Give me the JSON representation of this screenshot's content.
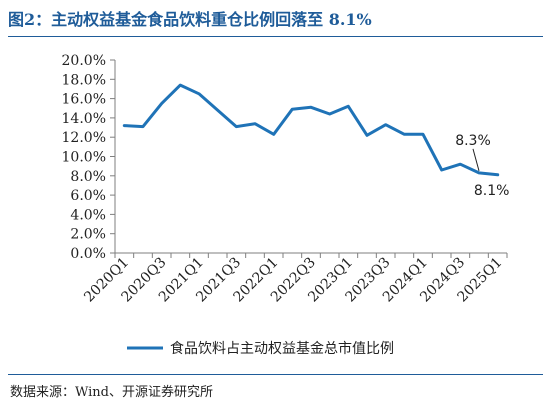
{
  "header": {
    "title": "图2：主动权益基金食品饮料重仓比例回落至 8.1%"
  },
  "footer": {
    "source": "数据来源：Wind、开源证券研究所"
  },
  "chart_data": {
    "type": "line",
    "title": "",
    "xlabel": "",
    "ylabel": "",
    "ylim": [
      0,
      20
    ],
    "y_ticks": [
      "0.0%",
      "2.0%",
      "4.0%",
      "6.0%",
      "8.0%",
      "10.0%",
      "12.0%",
      "14.0%",
      "16.0%",
      "18.0%",
      "20.0%"
    ],
    "grid": false,
    "legend_position": "bottom",
    "x_tick_labels": [
      "2020Q1",
      "2020Q3",
      "2021Q1",
      "2021Q3",
      "2022Q1",
      "2022Q3",
      "2023Q1",
      "2023Q3",
      "2024Q1",
      "2024Q3",
      "2025Q1"
    ],
    "categories": [
      "2020Q1",
      "2020Q2",
      "2020Q3",
      "2020Q4",
      "2021Q1",
      "2021Q2",
      "2021Q3",
      "2021Q4",
      "2022Q1",
      "2022Q2",
      "2022Q3",
      "2022Q4",
      "2023Q1",
      "2023Q2",
      "2023Q3",
      "2023Q4",
      "2024Q1",
      "2024Q2",
      "2024Q3",
      "2024Q4",
      "2025Q1"
    ],
    "series": [
      {
        "name": "食品饮料占主动权益基金总市值比例",
        "color": "#1f73b7",
        "values": [
          13.2,
          13.1,
          15.5,
          17.4,
          16.5,
          14.8,
          13.1,
          13.4,
          12.3,
          14.9,
          15.1,
          14.4,
          15.2,
          12.2,
          13.3,
          12.3,
          12.3,
          8.6,
          9.2,
          8.3,
          8.1
        ]
      }
    ],
    "annotations": [
      {
        "text": "8.3%",
        "category": "2024Q4",
        "value": 8.3
      },
      {
        "text": "8.1%",
        "category": "2025Q1",
        "value": 8.1
      }
    ]
  }
}
